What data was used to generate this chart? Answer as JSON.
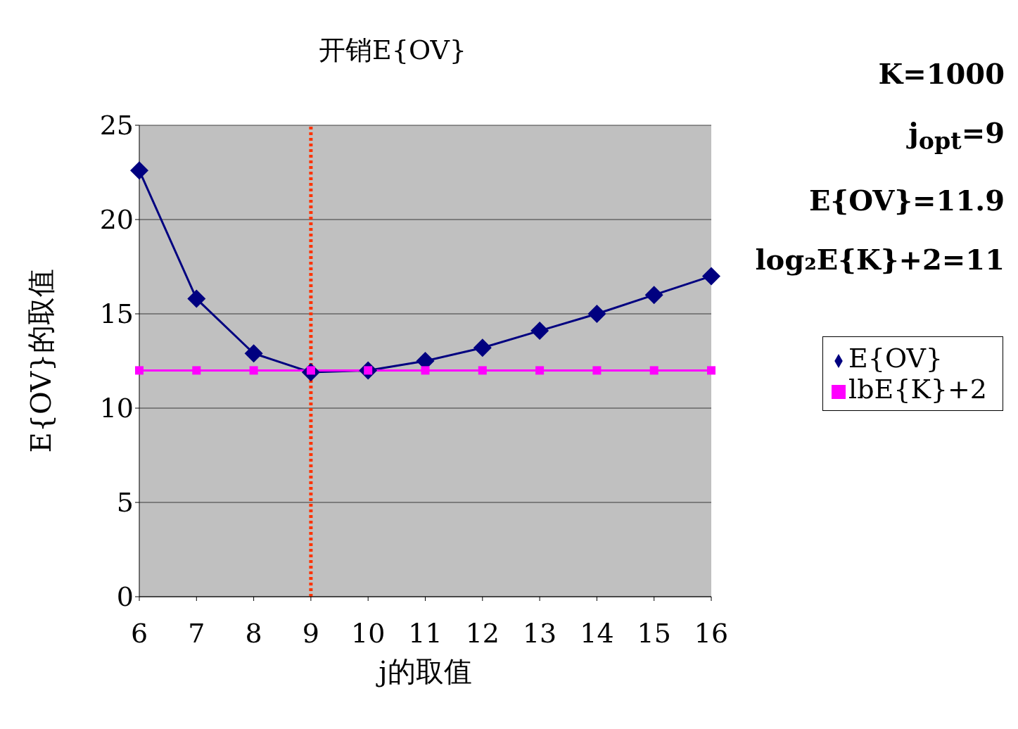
{
  "chart_data": {
    "type": "line",
    "title": "开销E{OV}",
    "xlabel": "j的取值",
    "ylabel": "E{OV}的取值",
    "categories": [
      "6",
      "7",
      "8",
      "9",
      "10",
      "11",
      "12",
      "13",
      "14",
      "15",
      "16"
    ],
    "series": [
      {
        "name": "E{OV}",
        "color": "#000080",
        "marker": "diamond",
        "values": [
          22.6,
          15.8,
          12.9,
          11.9,
          12.0,
          12.5,
          13.2,
          14.1,
          15.0,
          16.0,
          17.0
        ]
      },
      {
        "name": "lbE{K}+2",
        "color": "#ff00ff",
        "marker": "square",
        "values": [
          12.0,
          12.0,
          12.0,
          12.0,
          12.0,
          12.0,
          12.0,
          12.0,
          12.0,
          12.0,
          12.0
        ]
      }
    ],
    "ylim": [
      0,
      25
    ],
    "yticks": [
      0,
      5,
      10,
      15,
      20,
      25
    ],
    "grid": "y",
    "legend": "right",
    "line_style": "solid",
    "ref_lines": [
      {
        "axis": "x",
        "value": "9",
        "color": "#ff3300",
        "line_style": "dotted"
      }
    ],
    "annotations": [
      "K=1000",
      "j$_{opt}$=9",
      "E{OV}=11.9",
      "log₂E{K}+2=11"
    ]
  }
}
